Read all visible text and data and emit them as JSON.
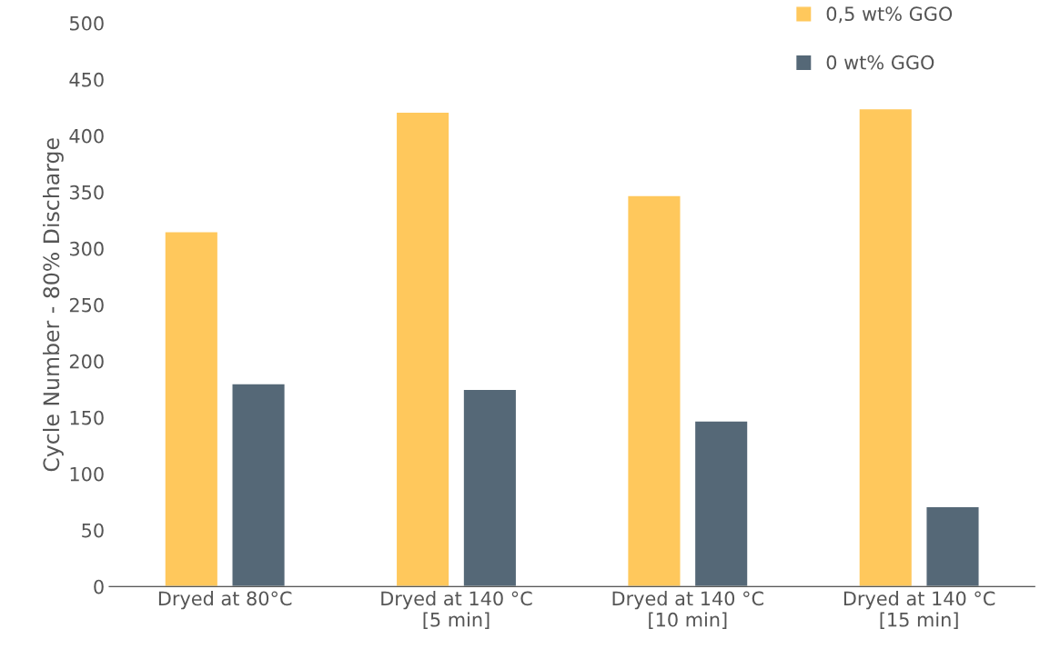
{
  "chart_data": {
    "type": "bar",
    "ylabel": "Cycle Number - 80% Discharge",
    "categories": [
      "Dryed at 80°C",
      "Dryed at 140 °C\n[5 min]",
      "Dryed at 140 °C\n[10 min]",
      "Dryed at 140 °C\n[15 min]"
    ],
    "series": [
      {
        "name": "0,5 wt% GGO",
        "color": "#ffc85c",
        "values": [
          315,
          421,
          347,
          424
        ]
      },
      {
        "name": "0 wt% GGO",
        "color": "#556877",
        "values": [
          180,
          175,
          147,
          71
        ]
      }
    ],
    "ylim": [
      0,
      500
    ],
    "yticks": [
      0,
      50,
      100,
      150,
      200,
      250,
      300,
      350,
      400,
      450,
      500
    ],
    "grid": false,
    "legend": "top right"
  }
}
